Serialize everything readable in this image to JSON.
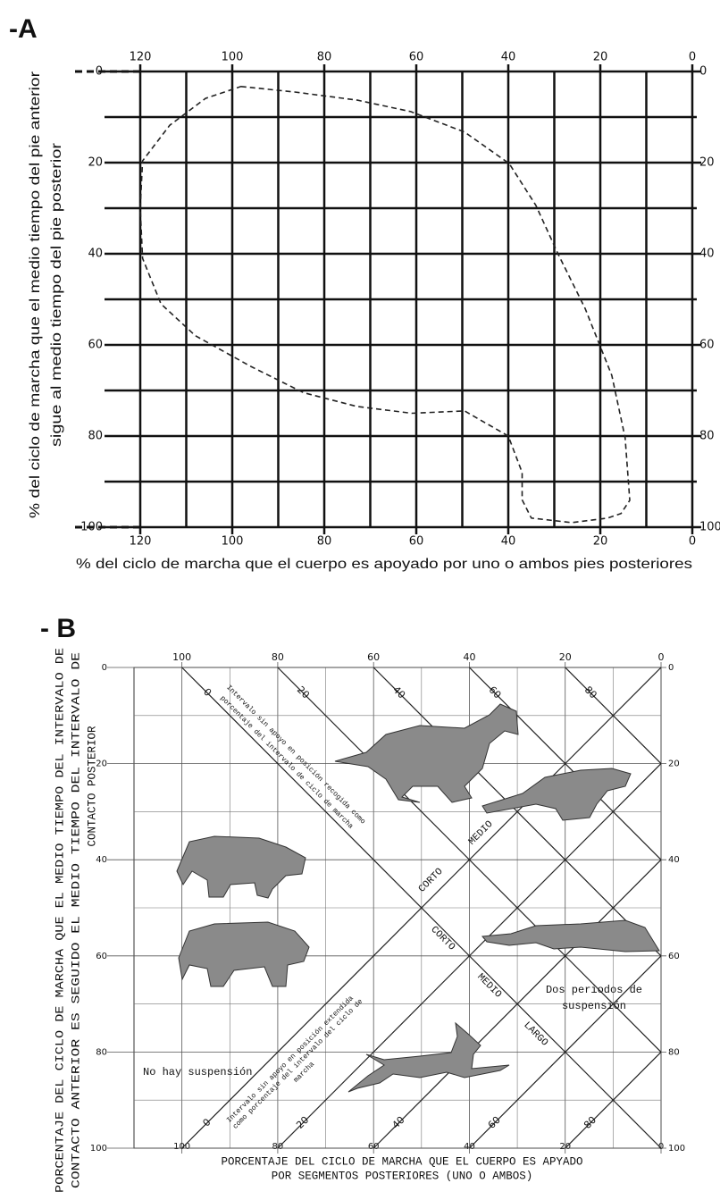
{
  "chart_data": [
    {
      "type": "line",
      "panel_label": "-A",
      "x_label": "% del ciclo de marcha que el cuerpo es apoyado por uno o ambos pies posteriores",
      "y_label": [
        "% del ciclo de marcha que el medio tiempo del pie anterior",
        "sigue al medio tiempo del pie posterior"
      ],
      "xlim": [
        120,
        0
      ],
      "ylim": [
        100,
        0
      ],
      "xticks": [
        120,
        100,
        80,
        60,
        40,
        20,
        0
      ],
      "yticks": [
        0,
        20,
        40,
        60,
        80,
        100
      ],
      "grid": true,
      "line_style": "dashed",
      "closed": true,
      "series": [
        {
          "color": "#222222",
          "x": [
            98.1,
            86.4,
            72.8,
            61.2,
            49.5,
            39.8,
            34.0,
            29.1,
            23.3,
            17.5,
            14.6,
            13.6,
            15.5,
            18.4,
            26.2,
            35.0,
            37.0,
            37.0,
            40.0,
            49.5,
            61.0,
            73.0,
            84.5,
            96.0,
            108.0,
            115.5,
            119.5,
            120.0,
            119.5,
            113.6,
            105.8
          ],
          "values": [
            3.3,
            4.5,
            6.3,
            8.8,
            13.3,
            20.2,
            29.4,
            40.2,
            52.0,
            66.7,
            80.4,
            94.1,
            97.0,
            98.0,
            99.0,
            98.0,
            94.0,
            88.0,
            80.0,
            74.5,
            75.0,
            73.5,
            70.5,
            64.7,
            58.0,
            51.0,
            41.0,
            30.0,
            19.6,
            11.8,
            5.9
          ]
        }
      ]
    },
    {
      "type": "nomogram",
      "panel_label": "- B",
      "x_label": [
        "PORCENTAJE DEL CICLO DE MARCHA QUE EL CUERPO ES APYADO",
        "POR SEGMENTOS POSTERIORES (UNO O AMBOS)"
      ],
      "y_label": [
        "PORCENTAJE DEL CICLO DE MARCHA QUE EL MEDIO TIEMPO DEL INTERVALO DE",
        "CONTACTO ANTERIOR ES SEGUIDO EL MEDIO TIEMPO DEL INTERVALO DE",
        "CONTACTO POSTERIOR"
      ],
      "xlim": [
        110,
        0
      ],
      "ylim": [
        100,
        0
      ],
      "xticks": [
        100,
        80,
        60,
        40,
        20,
        0
      ],
      "yticks": [
        0,
        20,
        40,
        60,
        80,
        100
      ],
      "grid": true,
      "diagonal_labels_top": [
        0,
        20,
        40,
        60,
        80
      ],
      "diagonal_labels_bottom": [
        0,
        20,
        40,
        60,
        80
      ],
      "note_top": [
        "Intervalo sin apoyo en posición recogida como",
        "porcentaje del intervalo de ciclo de marcha"
      ],
      "note_bottom": [
        "Intervalo sin apoyo en posición extendida",
        "como porcentaje del intervalo del ciclo de",
        "marcha"
      ],
      "zone_left": "No hay suspensión",
      "zone_right": [
        "Dos periodos de",
        "suspensión"
      ],
      "upper_diagonal_labels": [
        "CORTO",
        "MEDIO"
      ],
      "lower_diagonal_labels": [
        "CORTO",
        "MEDIO",
        "LARGO"
      ]
    }
  ]
}
